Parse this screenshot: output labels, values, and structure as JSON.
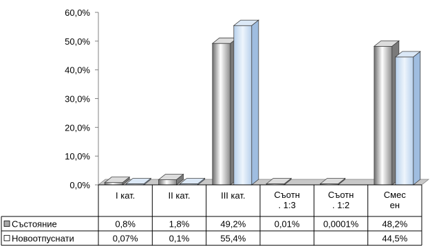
{
  "chart_data": {
    "type": "bar",
    "categories": [
      [
        "I кат."
      ],
      [
        "II кат."
      ],
      [
        "III кат."
      ],
      [
        "Съотн",
        ". 1:3"
      ],
      [
        "Съотн",
        ". 1:2"
      ],
      [
        "Смес",
        "ен"
      ]
    ],
    "series": [
      {
        "name": "Състояние",
        "values": [
          0.8,
          1.8,
          49.2,
          0.01,
          0.0001,
          48.2
        ],
        "labels": [
          "0,8%",
          "1,8%",
          "49,2%",
          "0,01%",
          "0,0001%",
          "48,2%"
        ],
        "color": "#a9a9a9"
      },
      {
        "name": "Новоотпуснати",
        "values": [
          0.07,
          0.1,
          55.4,
          null,
          null,
          44.5
        ],
        "labels": [
          "0,07%",
          "0,1%",
          "55,4%",
          "",
          "",
          "44,5%"
        ],
        "color": "#c6d9f1"
      }
    ],
    "ylim": [
      0,
      60
    ],
    "yticks": [
      "0,0%",
      "10,0%",
      "20,0%",
      "30,0%",
      "40,0%",
      "50,0%",
      "60,0%"
    ],
    "grid": false,
    "legend": "data-table",
    "depth": "3d"
  }
}
